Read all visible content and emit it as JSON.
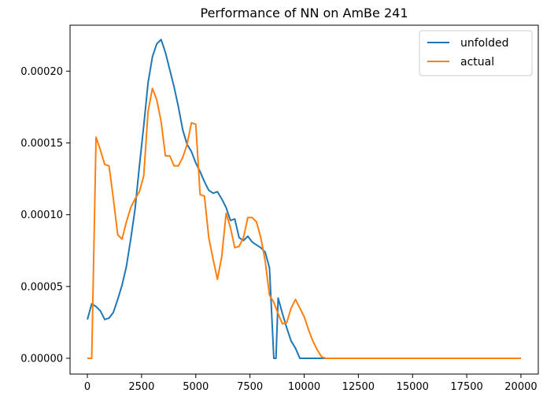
{
  "chart_data": {
    "type": "line",
    "title": "Performance of NN on AmBe 241",
    "xlabel": "",
    "ylabel": "",
    "xlim": [
      -800,
      20800
    ],
    "ylim": [
      -1.1e-05,
      0.000232
    ],
    "xticks": [
      0,
      2500,
      5000,
      7500,
      10000,
      12500,
      15000,
      17500,
      20000
    ],
    "xtick_labels": [
      "0",
      "2500",
      "5000",
      "7500",
      "10000",
      "12500",
      "15000",
      "17500",
      "20000"
    ],
    "yticks": [
      0.0,
      5e-05,
      0.0001,
      0.00015,
      0.0002
    ],
    "ytick_labels": [
      "0.00000",
      "0.00005",
      "0.00010",
      "0.00015",
      "0.00020"
    ],
    "grid": false,
    "legend_position": "top-right",
    "series": [
      {
        "name": "unfolded",
        "color": "#1f77b4",
        "x": [
          0,
          200,
          400,
          600,
          800,
          1000,
          1200,
          1400,
          1600,
          1800,
          2000,
          2200,
          2400,
          2600,
          2800,
          3000,
          3200,
          3400,
          3600,
          3800,
          4000,
          4200,
          4400,
          4600,
          4800,
          5000,
          5200,
          5400,
          5600,
          5800,
          6000,
          6200,
          6400,
          6600,
          6800,
          7000,
          7200,
          7400,
          7600,
          7800,
          8000,
          8200,
          8400,
          8600,
          8700,
          8800,
          9000,
          9200,
          9400,
          9600,
          9800,
          10000,
          10200,
          10400,
          10600,
          10800,
          11000,
          20000
        ],
        "y": [
          2.7e-05,
          3.8e-05,
          3.6e-05,
          3.3e-05,
          2.7e-05,
          2.8e-05,
          3.2e-05,
          4.1e-05,
          5.1e-05,
          6.4e-05,
          8.3e-05,
          0.000104,
          0.000134,
          0.000162,
          0.000192,
          0.00021,
          0.000219,
          0.000222,
          0.000213,
          0.000201,
          0.000189,
          0.000175,
          0.000159,
          0.000149,
          0.000144,
          0.000136,
          0.00013,
          0.000123,
          0.000117,
          0.000115,
          0.000116,
          0.000111,
          0.000105,
          9.6e-05,
          9.7e-05,
          8.4e-05,
          8.2e-05,
          8.5e-05,
          8.1e-05,
          7.9e-05,
          7.7e-05,
          7.4e-05,
          6.3e-05,
          0.0,
          0.0,
          4.2e-05,
          3.1e-05,
          2.1e-05,
          1.2e-05,
          7e-06,
          0.0,
          0.0,
          0.0,
          0.0,
          0.0,
          0.0,
          0.0,
          0.0
        ]
      },
      {
        "name": "actual",
        "color": "#ff7f0e",
        "x": [
          0,
          200,
          400,
          600,
          800,
          1000,
          1200,
          1400,
          1600,
          1800,
          2000,
          2200,
          2400,
          2600,
          2800,
          3000,
          3200,
          3400,
          3600,
          3800,
          4000,
          4200,
          4400,
          4600,
          4800,
          5000,
          5200,
          5400,
          5600,
          5800,
          6000,
          6200,
          6400,
          6600,
          6800,
          7000,
          7200,
          7400,
          7600,
          7800,
          8000,
          8200,
          8400,
          8600,
          8800,
          9000,
          9200,
          9400,
          9600,
          9800,
          10000,
          10200,
          10400,
          10600,
          10800,
          11000,
          20000
        ],
        "y": [
          0.0,
          0.0,
          0.000154,
          0.000145,
          0.000135,
          0.000134,
          0.000111,
          8.6e-05,
          8.3e-05,
          9.5e-05,
          0.000105,
          0.000111,
          0.000116,
          0.000127,
          0.000172,
          0.000188,
          0.00018,
          0.000165,
          0.000141,
          0.000141,
          0.000134,
          0.000134,
          0.00014,
          0.000149,
          0.000164,
          0.000163,
          0.000114,
          0.000113,
          8.4e-05,
          6.9e-05,
          5.5e-05,
          7.1e-05,
          0.000101,
          9.1e-05,
          7.7e-05,
          7.8e-05,
          8.4e-05,
          9.8e-05,
          9.8e-05,
          9.5e-05,
          8.4e-05,
          6.8e-05,
          4.4e-05,
          3.9e-05,
          3.1e-05,
          2.4e-05,
          2.5e-05,
          3.5e-05,
          4.1e-05,
          3.5e-05,
          2.9e-05,
          2e-05,
          1.2e-05,
          6e-06,
          1e-06,
          0.0,
          0.0
        ]
      }
    ]
  }
}
